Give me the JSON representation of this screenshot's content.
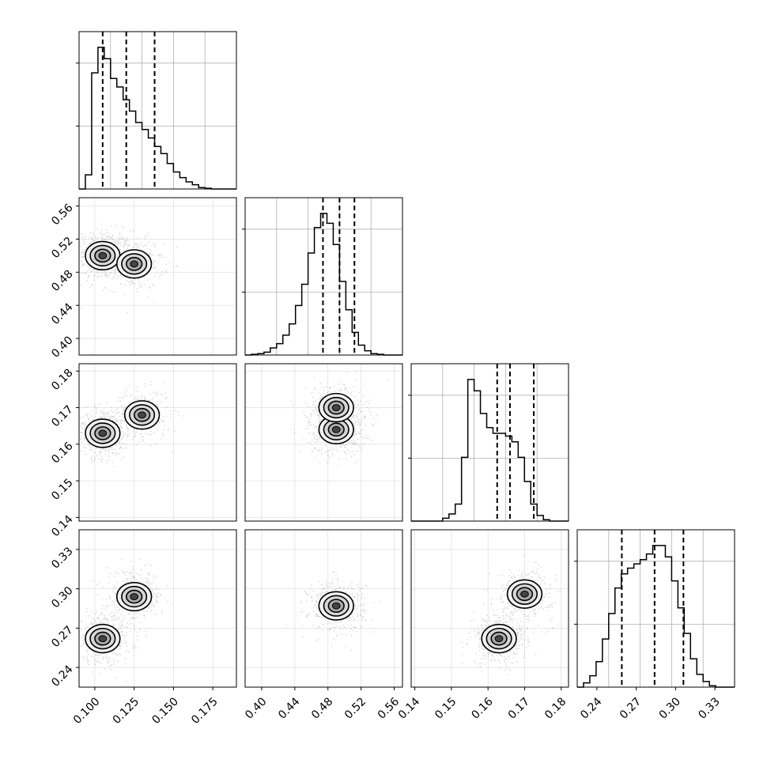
{
  "chart_data": {
    "type": "scatter",
    "subtype": "corner-plot",
    "parameters": 4,
    "grid": true,
    "colors": {
      "line": "#000000",
      "grid": "#b0b0b0",
      "points": "#000000",
      "frame": "#000000"
    },
    "axes": [
      {
        "range": [
          0.09,
          0.19
        ],
        "ticks": [
          0.1,
          0.125,
          0.15,
          0.175
        ],
        "tick_labels": [
          "0.100",
          "0.125",
          "0.150",
          "0.175"
        ]
      },
      {
        "range": [
          0.38,
          0.57
        ],
        "ticks": [
          0.4,
          0.44,
          0.48,
          0.52,
          0.56
        ],
        "tick_labels": [
          "0.40",
          "0.44",
          "0.48",
          "0.52",
          "0.56"
        ]
      },
      {
        "range": [
          0.139,
          0.182
        ],
        "ticks": [
          0.14,
          0.15,
          0.16,
          0.17,
          0.18
        ],
        "tick_labels": [
          "0.14",
          "0.15",
          "0.16",
          "0.17",
          "0.18"
        ]
      },
      {
        "range": [
          0.225,
          0.345
        ],
        "ticks": [
          0.24,
          0.27,
          0.3,
          0.33
        ],
        "tick_labels": [
          "0.24",
          "0.27",
          "0.30",
          "0.33"
        ]
      }
    ],
    "marginals": [
      {
        "bins": [
          0.09,
          0.195
        ],
        "counts": [
          0,
          0.1,
          0.82,
          1.0,
          0.92,
          0.78,
          0.72,
          0.63,
          0.55,
          0.47,
          0.42,
          0.36,
          0.3,
          0.25,
          0.18,
          0.12,
          0.08,
          0.05,
          0.03,
          0.01,
          0.005,
          0,
          0,
          0,
          0
        ],
        "quantiles": [
          0.105,
          0.12,
          0.138
        ]
      },
      {
        "bins": [
          0.38,
          0.57
        ],
        "counts": [
          0,
          0.005,
          0.01,
          0.02,
          0.05,
          0.08,
          0.14,
          0.22,
          0.35,
          0.5,
          0.72,
          0.9,
          1.0,
          0.93,
          0.78,
          0.52,
          0.32,
          0.16,
          0.07,
          0.03,
          0.01,
          0.005,
          0,
          0,
          0
        ],
        "quantiles": [
          0.474,
          0.494,
          0.512
        ]
      },
      {
        "bins": [
          0.139,
          0.182
        ],
        "counts": [
          0,
          0,
          0,
          0,
          0,
          0.02,
          0.05,
          0.12,
          0.45,
          1.0,
          0.92,
          0.76,
          0.66,
          0.62,
          0.62,
          0.6,
          0.56,
          0.45,
          0.28,
          0.12,
          0.04,
          0.01,
          0,
          0,
          0
        ],
        "quantiles": [
          0.1625,
          0.166,
          0.1725
        ]
      },
      {
        "bins": [
          0.225,
          0.345
        ],
        "counts": [
          0,
          0.03,
          0.08,
          0.18,
          0.34,
          0.52,
          0.7,
          0.8,
          0.84,
          0.87,
          0.9,
          0.94,
          1.0,
          1.0,
          0.92,
          0.75,
          0.56,
          0.38,
          0.2,
          0.09,
          0.04,
          0.01,
          0,
          0,
          0
        ],
        "quantiles": [
          0.259,
          0.284,
          0.306
        ]
      }
    ],
    "joint_modes": [
      {
        "i": 1,
        "j": 0,
        "modes": [
          [
            0.105,
            0.5,
            0.6
          ],
          [
            0.125,
            0.49,
            0.35
          ]
        ]
      },
      {
        "i": 2,
        "j": 0,
        "modes": [
          [
            0.105,
            0.163,
            0.55
          ],
          [
            0.13,
            0.168,
            0.35
          ]
        ]
      },
      {
        "i": 2,
        "j": 1,
        "modes": [
          [
            0.49,
            0.164,
            0.55
          ],
          [
            0.49,
            0.17,
            0.35
          ]
        ]
      },
      {
        "i": 3,
        "j": 0,
        "modes": [
          [
            0.105,
            0.262,
            0.5
          ],
          [
            0.125,
            0.294,
            0.4
          ]
        ]
      },
      {
        "i": 3,
        "j": 1,
        "modes": [
          [
            0.49,
            0.287,
            0.55
          ]
        ]
      },
      {
        "i": 3,
        "j": 2,
        "modes": [
          [
            0.163,
            0.262,
            0.5
          ],
          [
            0.17,
            0.296,
            0.4
          ]
        ]
      }
    ]
  }
}
